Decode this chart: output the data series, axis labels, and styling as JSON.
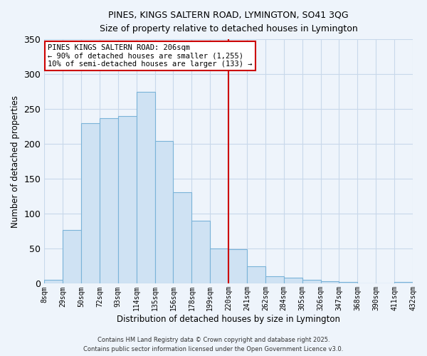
{
  "title": "PINES, KINGS SALTERN ROAD, LYMINGTON, SO41 3QG",
  "subtitle": "Size of property relative to detached houses in Lymington",
  "xlabel": "Distribution of detached houses by size in Lymington",
  "ylabel": "Number of detached properties",
  "bar_labels": [
    "8sqm",
    "29sqm",
    "50sqm",
    "72sqm",
    "93sqm",
    "114sqm",
    "135sqm",
    "156sqm",
    "178sqm",
    "199sqm",
    "220sqm",
    "241sqm",
    "262sqm",
    "284sqm",
    "305sqm",
    "326sqm",
    "347sqm",
    "368sqm",
    "390sqm",
    "411sqm",
    "432sqm"
  ],
  "bar_values": [
    6,
    77,
    230,
    237,
    240,
    275,
    204,
    131,
    90,
    50,
    49,
    25,
    11,
    9,
    6,
    3,
    2,
    0,
    0,
    2
  ],
  "bar_color": "#cfe2f3",
  "bar_edge_color": "#7ab3d8",
  "ylim": [
    0,
    350
  ],
  "yticks": [
    0,
    50,
    100,
    150,
    200,
    250,
    300,
    350
  ],
  "vline_color": "#cc0000",
  "annotation_title": "PINES KINGS SALTERN ROAD: 206sqm",
  "annotation_line1": "← 90% of detached houses are smaller (1,255)",
  "annotation_line2": "10% of semi-detached houses are larger (133) →",
  "footer1": "Contains HM Land Registry data © Crown copyright and database right 2025.",
  "footer2": "Contains public sector information licensed under the Open Government Licence v3.0.",
  "bg_color": "#eef4fb",
  "grid_color": "#c8d8ea"
}
